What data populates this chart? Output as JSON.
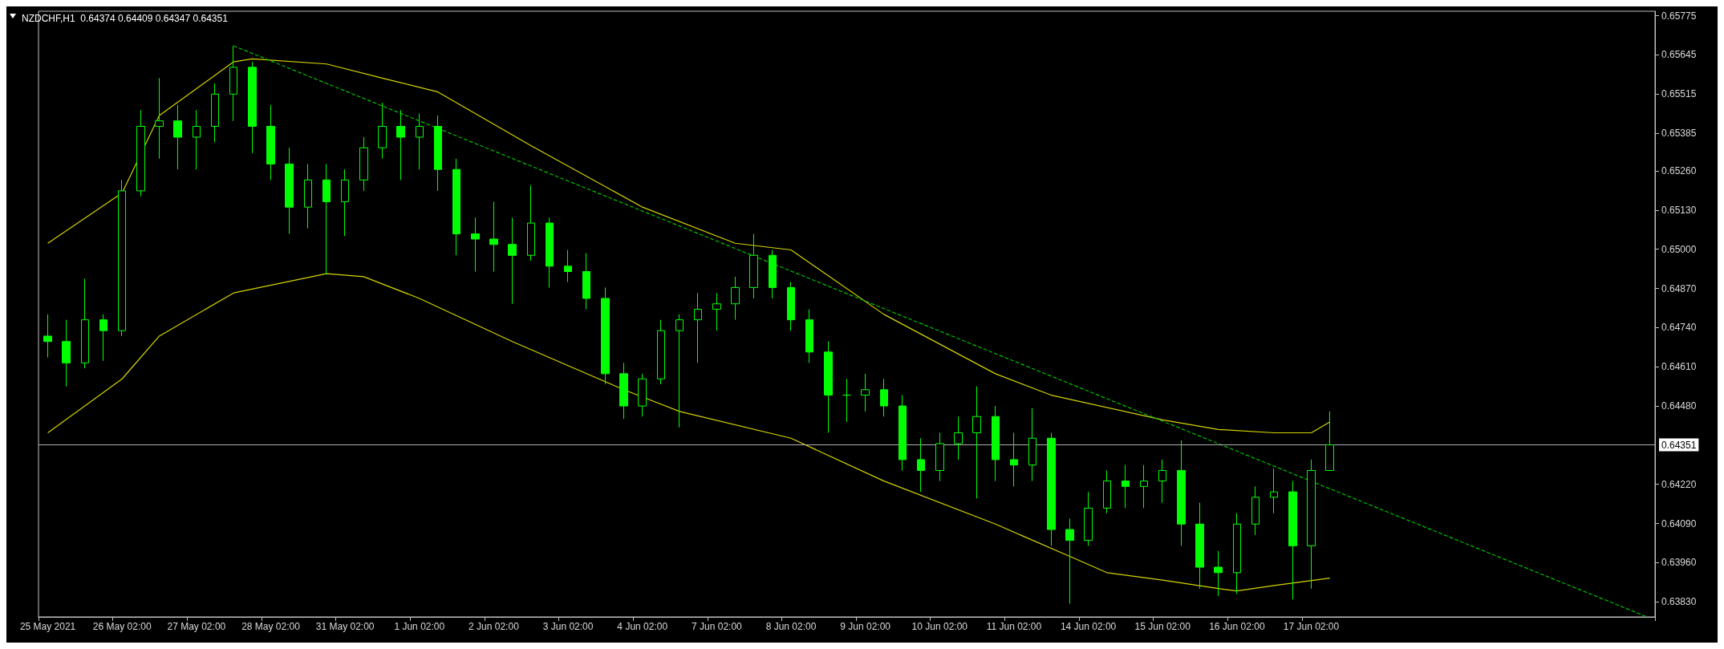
{
  "chart_data": {
    "type": "candlestick",
    "title": "NZDCHF,H1  0.64374 0.64409 0.64347 0.64351",
    "color": "#00ff00",
    "categories": [
      "25 May 2021",
      null,
      null,
      null,
      "26 May 02:00",
      null,
      null,
      null,
      "27 May 02:00",
      null,
      null,
      null,
      "28 May 02:00",
      null,
      null,
      null,
      "31 May 02:00",
      null,
      null,
      null,
      "1 Jun 02:00",
      null,
      null,
      null,
      "2 Jun 02:00",
      null,
      null,
      null,
      "3 Jun 02:00",
      null,
      null,
      null,
      "4 Jun 02:00",
      null,
      null,
      null,
      "7 Jun 02:00",
      null,
      null,
      null,
      "8 Jun 02:00",
      null,
      null,
      null,
      "9 Jun 02:00",
      null,
      null,
      null,
      "10 Jun 02:00",
      null,
      null,
      null,
      "11 Jun 02:00",
      null,
      null,
      null,
      "14 Jun 02:00",
      null,
      null,
      null,
      "15 Jun 02:00",
      null,
      null,
      null,
      "16 Jun 02:00",
      null,
      null,
      null,
      "17 Jun 02:00",
      null,
      null,
      null,
      null,
      null,
      null,
      null,
      null,
      null,
      null,
      null,
      null,
      null,
      null,
      null,
      null,
      null,
      null
    ],
    "ohlc": [
      [
        0.64712,
        0.64784,
        0.64641,
        0.64694
      ],
      [
        0.64694,
        0.64766,
        0.64545,
        0.64623
      ],
      [
        0.64623,
        0.64902,
        0.64605,
        0.64766
      ],
      [
        0.64766,
        0.64784,
        0.6463,
        0.6473
      ],
      [
        0.6473,
        0.6523,
        0.64712,
        0.65194
      ],
      [
        0.65194,
        0.65462,
        0.65176,
        0.65408
      ],
      [
        0.65408,
        0.65568,
        0.65301,
        0.65426
      ],
      [
        0.65426,
        0.65479,
        0.65265,
        0.65372
      ],
      [
        0.65372,
        0.65462,
        0.65265,
        0.65408
      ],
      [
        0.65408,
        0.6555,
        0.65355,
        0.65515
      ],
      [
        0.65515,
        0.65675,
        0.65426,
        0.65604
      ],
      [
        0.65604,
        0.65622,
        0.65319,
        0.65408
      ],
      [
        0.65408,
        0.65479,
        0.6523,
        0.65283
      ],
      [
        0.65283,
        0.65337,
        0.65051,
        0.6514
      ],
      [
        0.6514,
        0.65283,
        0.65069,
        0.6523
      ],
      [
        0.6523,
        0.65283,
        0.64916,
        0.65158
      ],
      [
        0.65158,
        0.65265,
        0.65044,
        0.6523
      ],
      [
        0.6523,
        0.65372,
        0.65194,
        0.65337
      ],
      [
        0.65337,
        0.65486,
        0.65301,
        0.65408
      ],
      [
        0.65408,
        0.65462,
        0.6523,
        0.65372
      ],
      [
        0.65372,
        0.65451,
        0.65265,
        0.65408
      ],
      [
        0.65408,
        0.65444,
        0.65194,
        0.65265
      ],
      [
        0.65265,
        0.65301,
        0.6498,
        0.65051
      ],
      [
        0.65051,
        0.65105,
        0.64926,
        0.65034
      ],
      [
        0.65034,
        0.65158,
        0.64926,
        0.65016
      ],
      [
        0.65016,
        0.65105,
        0.64819,
        0.6498
      ],
      [
        0.6498,
        0.65212,
        0.64962,
        0.65087
      ],
      [
        0.65087,
        0.65105,
        0.64873,
        0.64944
      ],
      [
        0.64944,
        0.64998,
        0.64891,
        0.64926
      ],
      [
        0.64926,
        0.64987,
        0.64801,
        0.64837
      ],
      [
        0.64837,
        0.64873,
        0.64552,
        0.64587
      ],
      [
        0.64587,
        0.64623,
        0.64437,
        0.6448
      ],
      [
        0.6448,
        0.64587,
        0.64445,
        0.6457
      ],
      [
        0.6457,
        0.64766,
        0.64552,
        0.6473
      ],
      [
        0.6473,
        0.64784,
        0.64409,
        0.64766
      ],
      [
        0.64766,
        0.64855,
        0.64623,
        0.64801
      ],
      [
        0.64801,
        0.64855,
        0.6473,
        0.64819
      ],
      [
        0.64819,
        0.64909,
        0.64766,
        0.64873
      ],
      [
        0.64873,
        0.65051,
        0.64837,
        0.6498
      ],
      [
        0.6498,
        0.64998,
        0.64837,
        0.64873
      ],
      [
        0.64873,
        0.64891,
        0.6473,
        0.64766
      ],
      [
        0.64766,
        0.64801,
        0.64623,
        0.64659
      ],
      [
        0.64659,
        0.64694,
        0.64391,
        0.64516
      ],
      [
        0.64516,
        0.6457,
        0.64427,
        0.64516
      ],
      [
        0.64516,
        0.64587,
        0.64462,
        0.64534
      ],
      [
        0.64534,
        0.6457,
        0.64445,
        0.6448
      ],
      [
        0.6448,
        0.64516,
        0.64266,
        0.64302
      ],
      [
        0.64302,
        0.64373,
        0.64195,
        0.64266
      ],
      [
        0.64266,
        0.64391,
        0.64231,
        0.64355
      ],
      [
        0.64355,
        0.64445,
        0.64302,
        0.64391
      ],
      [
        0.64391,
        0.64545,
        0.64173,
        0.64445
      ],
      [
        0.64445,
        0.6448,
        0.64231,
        0.64302
      ],
      [
        0.64302,
        0.64391,
        0.64213,
        0.64284
      ],
      [
        0.64284,
        0.64473,
        0.64231,
        0.64373
      ],
      [
        0.64373,
        0.64391,
        0.64016,
        0.6407
      ],
      [
        0.6407,
        0.64106,
        0.63824,
        0.64034
      ],
      [
        0.64034,
        0.64195,
        0.64016,
        0.64141
      ],
      [
        0.64141,
        0.64266,
        0.64124,
        0.64231
      ],
      [
        0.64231,
        0.64284,
        0.64141,
        0.64213
      ],
      [
        0.64213,
        0.64284,
        0.64141,
        0.64231
      ],
      [
        0.64231,
        0.64302,
        0.64159,
        0.64266
      ],
      [
        0.64266,
        0.64366,
        0.64016,
        0.64088
      ],
      [
        0.64088,
        0.64159,
        0.63874,
        0.63945
      ],
      [
        0.63945,
        0.63999,
        0.63849,
        0.63927
      ],
      [
        0.63927,
        0.64124,
        0.63856,
        0.64088
      ],
      [
        0.64088,
        0.64213,
        0.64052,
        0.64177
      ],
      [
        0.64177,
        0.64273,
        0.64124,
        0.64195
      ],
      [
        0.64195,
        0.64231,
        0.63838,
        0.64016
      ],
      [
        0.64016,
        0.64302,
        0.63874,
        0.64266
      ],
      [
        0.64266,
        0.64462,
        0.64266,
        0.64351
      ],
      null,
      null,
      null,
      null,
      null,
      null,
      null,
      null,
      null,
      null,
      null,
      null,
      null,
      null,
      null,
      null,
      null
    ],
    "series": [
      {
        "type": "line",
        "color": "#d4d400",
        "values": [
          0.6502,
          null,
          null,
          null,
          0.65187,
          null,
          0.65444,
          null,
          null,
          null,
          0.65622,
          0.65632,
          null,
          null,
          null,
          0.65615,
          null,
          null,
          0.65568,
          null,
          null,
          0.65522,
          null,
          null,
          null,
          null,
          0.65344,
          null,
          null,
          null,
          null,
          null,
          0.6514,
          null,
          null,
          null,
          null,
          0.6502,
          null,
          null,
          0.64998,
          null,
          null,
          null,
          null,
          0.64784,
          null,
          null,
          null,
          null,
          null,
          0.64587,
          null,
          null,
          0.64516,
          null,
          null,
          null,
          null,
          null,
          0.64434,
          null,
          null,
          0.64402,
          null,
          null,
          0.64391,
          null,
          0.64391,
          0.64427,
          null,
          null,
          null,
          null,
          null,
          null,
          null,
          null,
          null,
          null,
          null,
          null,
          null,
          null,
          null,
          null,
          null
        ]
      },
      {
        "type": "line",
        "color": "#d4d400",
        "values": [
          0.64391,
          null,
          null,
          null,
          0.6457,
          null,
          0.64712,
          null,
          null,
          null,
          0.64855,
          null,
          null,
          null,
          null,
          0.64919,
          null,
          0.64909,
          null,
          null,
          0.64837,
          null,
          null,
          null,
          null,
          0.64694,
          null,
          null,
          null,
          null,
          null,
          0.64534,
          null,
          null,
          0.64462,
          null,
          null,
          null,
          null,
          null,
          0.64373,
          null,
          null,
          null,
          null,
          0.64231,
          null,
          null,
          null,
          null,
          null,
          0.64088,
          null,
          null,
          null,
          0.63981,
          null,
          0.63927,
          null,
          null,
          0.63902,
          null,
          null,
          0.63874,
          0.63866,
          null,
          0.63884,
          null,
          null,
          0.63909,
          null,
          null,
          null,
          null,
          null,
          null,
          null,
          null,
          null,
          null,
          null,
          null,
          null,
          null,
          null,
          null,
          null
        ]
      },
      {
        "type": "line",
        "color": "#00c000",
        "line_style": "dashed",
        "values": [
          null,
          null,
          null,
          null,
          null,
          null,
          null,
          null,
          null,
          null,
          0.65675,
          null,
          null,
          null,
          null,
          null,
          null,
          null,
          null,
          null,
          null,
          null,
          null,
          null,
          null,
          null,
          null,
          null,
          null,
          null,
          null,
          null,
          null,
          null,
          null,
          null,
          null,
          null,
          null,
          null,
          null,
          null,
          null,
          null,
          null,
          null,
          null,
          null,
          null,
          null,
          null,
          null,
          null,
          null,
          null,
          null,
          null,
          null,
          null,
          null,
          null,
          null,
          null,
          null,
          null,
          null,
          null,
          null,
          null,
          null,
          null,
          null,
          null,
          null,
          null,
          null,
          null,
          null,
          null,
          null,
          null,
          null,
          null,
          null,
          null,
          null,
          0.63782
        ]
      }
    ],
    "ylim": [
      0.6378,
      0.6579
    ],
    "yticks": [
      {
        "value": 0.6383,
        "label": "0.63830"
      },
      {
        "value": 0.6396,
        "label": "0.63960"
      },
      {
        "value": 0.6409,
        "label": "0.64090"
      },
      {
        "value": 0.6422,
        "label": "0.64220"
      },
      {
        "value": 0.6448,
        "label": "0.64480"
      },
      {
        "value": 0.6461,
        "label": "0.64610"
      },
      {
        "value": 0.6474,
        "label": "0.64740"
      },
      {
        "value": 0.6487,
        "label": "0.64870"
      },
      {
        "value": 0.65,
        "label": "0.65000"
      },
      {
        "value": 0.6513,
        "label": "0.65130"
      },
      {
        "value": 0.6526,
        "label": "0.65260"
      },
      0.65385,
      0.65515,
      0.65645,
      0.65775
    ],
    "ref_lines": [
      {
        "axis": "y",
        "value": 0.64351,
        "label": "0.64351",
        "color": "#b0b0b0"
      }
    ],
    "grid": false
  }
}
